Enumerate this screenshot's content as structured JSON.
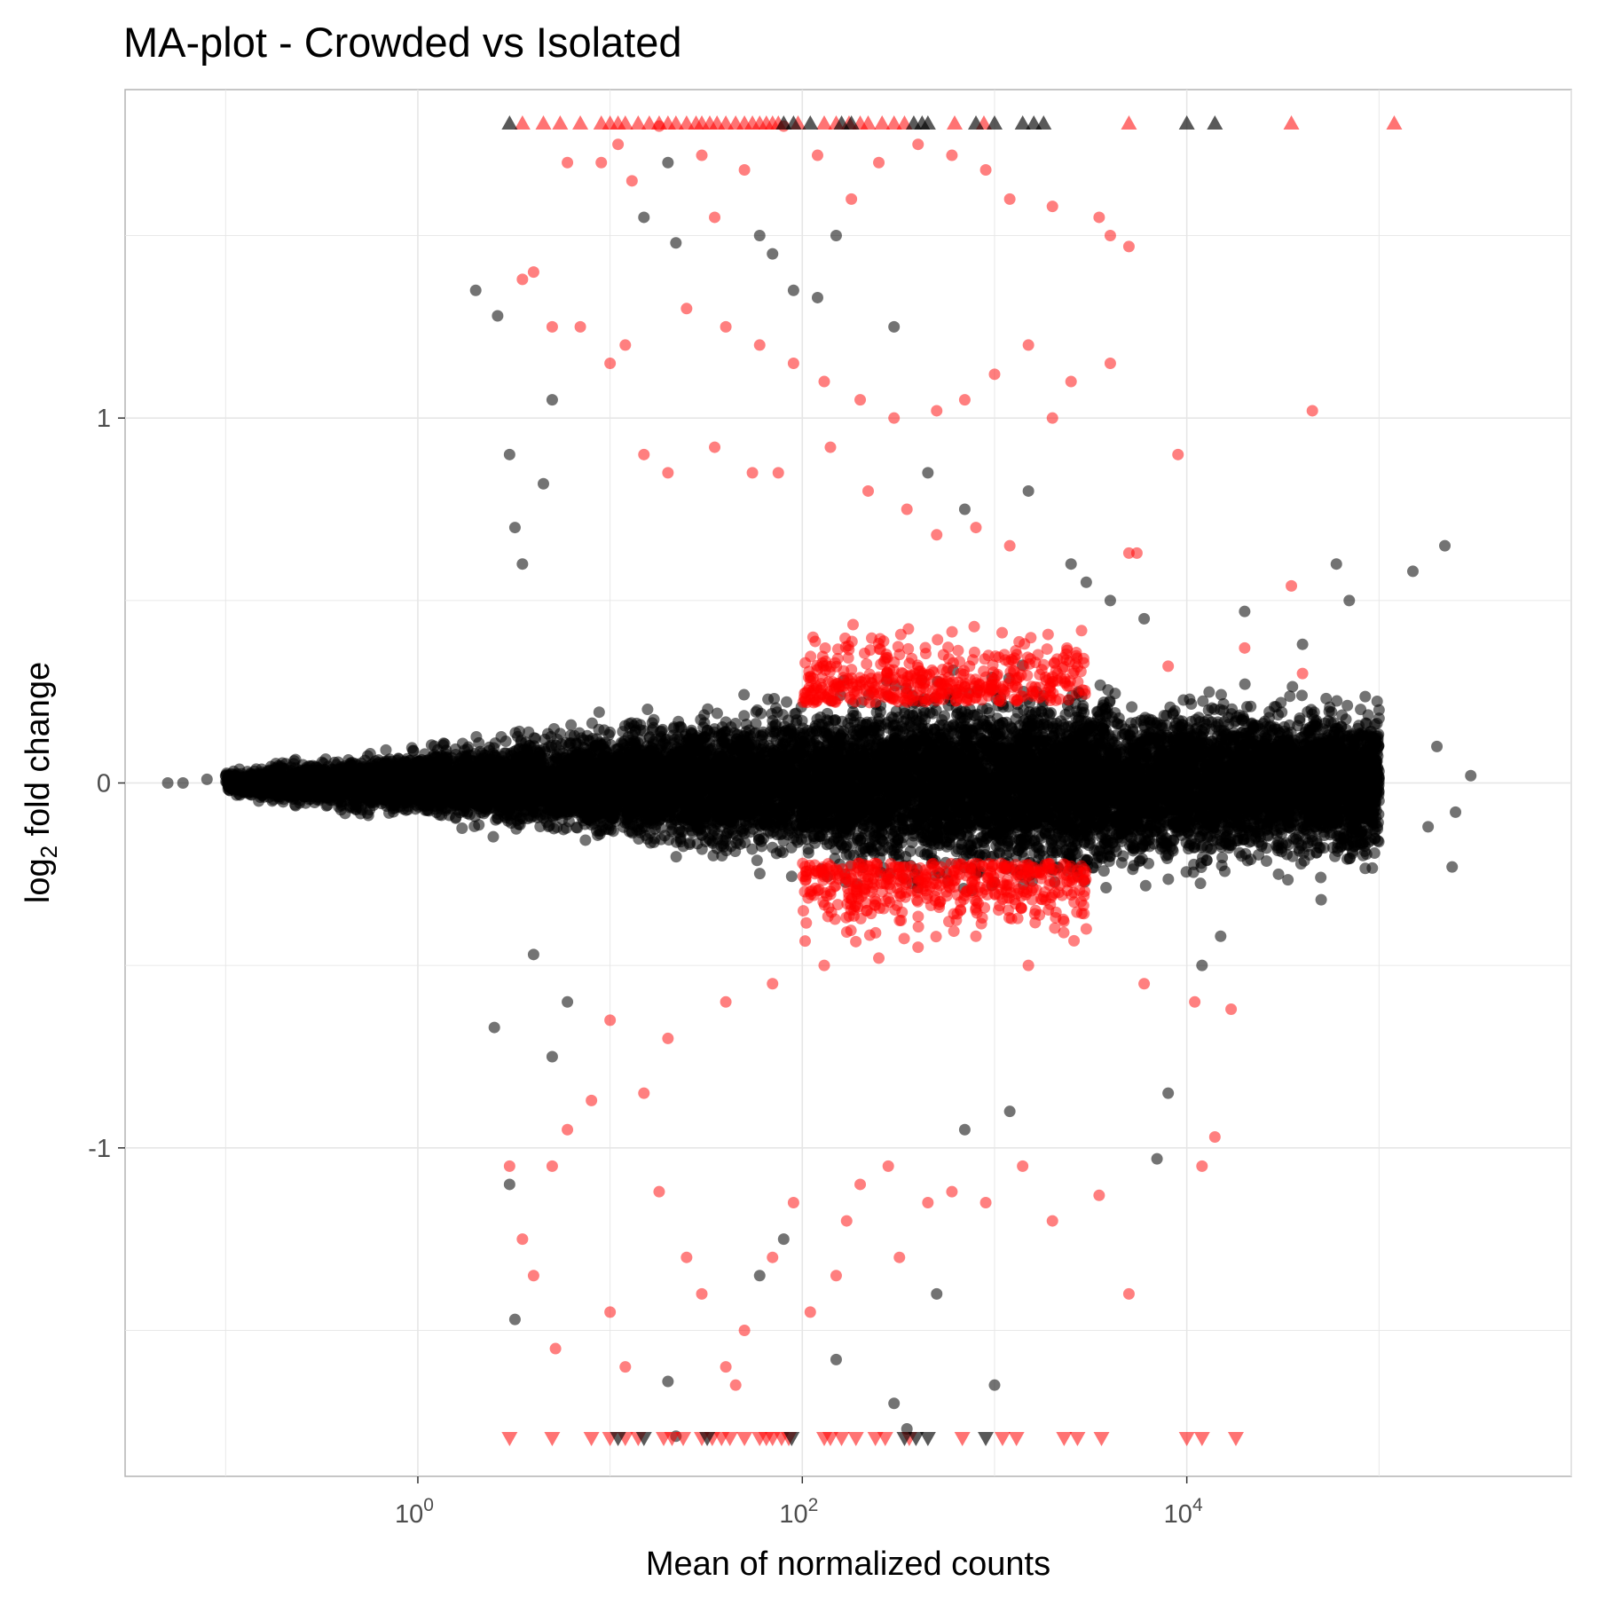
{
  "chart_data": {
    "type": "scatter",
    "title": "MA-plot - Crowded vs Isolated",
    "xlabel": "Mean of normalized counts",
    "ylabel": "log2 fold change",
    "ylabel_parts": {
      "base": "log",
      "sub": "2",
      "rest": " fold change"
    },
    "x_scale": "log10",
    "xlim": [
      0.03,
      1000000
    ],
    "ylim": [
      -1.9,
      1.9
    ],
    "x_ticks": [
      {
        "value": 1,
        "base": "10",
        "exp": "0"
      },
      {
        "value": 100,
        "base": "10",
        "exp": "2"
      },
      {
        "value": 10000,
        "base": "10",
        "exp": "4"
      }
    ],
    "y_ticks": [
      {
        "value": 1,
        "label": "1"
      },
      {
        "value": 0,
        "label": "0"
      },
      {
        "value": -1,
        "label": "-1"
      }
    ],
    "grid": true,
    "legend": "none",
    "series": [
      {
        "color": "#000000",
        "marker": "circle",
        "opacity": 0.55,
        "cloud": {
          "x_range": [
            0.1,
            100000
          ],
          "n_points": 14000
        },
        "points": [
          [
            2,
            1.35
          ],
          [
            2.6,
            1.28
          ],
          [
            3,
            0.9
          ],
          [
            3.2,
            0.7
          ],
          [
            4.5,
            0.82
          ],
          [
            5,
            1.05
          ],
          [
            3.5,
            0.6
          ],
          [
            20,
            1.7
          ],
          [
            15,
            1.55
          ],
          [
            22,
            1.48
          ],
          [
            60,
            1.5
          ],
          [
            70,
            1.45
          ],
          [
            150,
            1.5
          ],
          [
            90,
            1.35
          ],
          [
            120,
            1.33
          ],
          [
            300,
            1.25
          ],
          [
            450,
            0.85
          ],
          [
            700,
            0.75
          ],
          [
            1500,
            0.8
          ],
          [
            3000,
            0.55
          ],
          [
            4000,
            0.5
          ],
          [
            2500,
            0.6
          ],
          [
            6000,
            0.45
          ],
          [
            20000,
            0.47
          ],
          [
            60000,
            0.6
          ],
          [
            70000,
            0.5
          ],
          [
            150000,
            0.58
          ],
          [
            220000,
            0.65
          ],
          [
            100000,
            0.2
          ],
          [
            200000,
            0.1
          ],
          [
            40000,
            0.38
          ],
          [
            250000,
            -0.08
          ],
          [
            300000,
            0.02
          ],
          [
            180000,
            -0.12
          ],
          [
            240000,
            -0.23
          ],
          [
            50000,
            -0.32
          ],
          [
            30000,
            -0.25
          ],
          [
            15000,
            -0.42
          ],
          [
            12000,
            -0.5
          ],
          [
            8000,
            -0.85
          ],
          [
            7000,
            -1.03
          ],
          [
            2.5,
            -0.67
          ],
          [
            3,
            -1.1
          ],
          [
            3.2,
            -1.47
          ],
          [
            5,
            -0.75
          ],
          [
            6,
            -0.6
          ],
          [
            4,
            -0.47
          ],
          [
            20,
            -1.64
          ],
          [
            60,
            -1.35
          ],
          [
            80,
            -1.25
          ],
          [
            150,
            -1.58
          ],
          [
            300,
            -1.7
          ],
          [
            1000,
            -1.65
          ],
          [
            500,
            -1.4
          ],
          [
            700,
            -0.95
          ],
          [
            1200,
            -0.9
          ],
          [
            22,
            -1.79
          ],
          [
            350,
            -1.77
          ],
          [
            0.05,
            0
          ],
          [
            0.06,
            0
          ],
          [
            0.08,
            0.01
          ],
          [
            0.1,
            0.02
          ],
          [
            0.12,
            -0.01
          ],
          [
            0.15,
            0
          ]
        ]
      },
      {
        "color": "#ff0000",
        "marker": "circle",
        "opacity": 0.5,
        "cloud": {
          "x_range": [
            100,
            3000
          ],
          "n_points": 900
        },
        "points": [
          [
            6,
            1.7
          ],
          [
            9,
            1.7
          ],
          [
            11,
            1.75
          ],
          [
            13,
            1.65
          ],
          [
            18,
            1.8
          ],
          [
            30,
            1.72
          ],
          [
            35,
            1.55
          ],
          [
            50,
            1.68
          ],
          [
            80,
            1.8
          ],
          [
            120,
            1.72
          ],
          [
            180,
            1.6
          ],
          [
            250,
            1.7
          ],
          [
            400,
            1.75
          ],
          [
            600,
            1.72
          ],
          [
            900,
            1.68
          ],
          [
            1200,
            1.6
          ],
          [
            2000,
            1.58
          ],
          [
            3500,
            1.55
          ],
          [
            4000,
            1.5
          ],
          [
            5000,
            1.47
          ],
          [
            3.5,
            1.38
          ],
          [
            4,
            1.4
          ],
          [
            5,
            1.25
          ],
          [
            7,
            1.25
          ],
          [
            10,
            1.15
          ],
          [
            12,
            1.2
          ],
          [
            25,
            1.3
          ],
          [
            40,
            1.25
          ],
          [
            60,
            1.2
          ],
          [
            90,
            1.15
          ],
          [
            130,
            1.1
          ],
          [
            200,
            1.05
          ],
          [
            300,
            1.0
          ],
          [
            500,
            1.02
          ],
          [
            700,
            1.05
          ],
          [
            1000,
            1.12
          ],
          [
            1500,
            1.2
          ],
          [
            2000,
            1.0
          ],
          [
            2500,
            1.1
          ],
          [
            4000,
            1.15
          ],
          [
            9000,
            0.9
          ],
          [
            45000,
            1.02
          ],
          [
            5000,
            0.63
          ],
          [
            5500,
            0.63
          ],
          [
            35000,
            0.54
          ],
          [
            40000,
            0.3
          ],
          [
            20000,
            0.37
          ],
          [
            8000,
            0.32
          ],
          [
            15,
            0.9
          ],
          [
            20,
            0.85
          ],
          [
            35,
            0.92
          ],
          [
            55,
            0.85
          ],
          [
            75,
            0.85
          ],
          [
            140,
            0.92
          ],
          [
            220,
            0.8
          ],
          [
            350,
            0.75
          ],
          [
            500,
            0.68
          ],
          [
            800,
            0.7
          ],
          [
            1200,
            0.65
          ],
          [
            3,
            -1.05
          ],
          [
            3.5,
            -1.25
          ],
          [
            4,
            -1.35
          ],
          [
            5,
            -1.05
          ],
          [
            5.2,
            -1.55
          ],
          [
            6,
            -0.95
          ],
          [
            8,
            -0.87
          ],
          [
            10,
            -1.45
          ],
          [
            12,
            -1.6
          ],
          [
            15,
            -0.85
          ],
          [
            18,
            -1.12
          ],
          [
            25,
            -1.3
          ],
          [
            30,
            -1.4
          ],
          [
            40,
            -1.6
          ],
          [
            45,
            -1.65
          ],
          [
            50,
            -1.5
          ],
          [
            70,
            -1.3
          ],
          [
            90,
            -1.15
          ],
          [
            110,
            -1.45
          ],
          [
            150,
            -1.35
          ],
          [
            170,
            -1.2
          ],
          [
            200,
            -1.1
          ],
          [
            280,
            -1.05
          ],
          [
            320,
            -1.3
          ],
          [
            450,
            -1.15
          ],
          [
            600,
            -1.12
          ],
          [
            900,
            -1.15
          ],
          [
            1400,
            -1.05
          ],
          [
            2000,
            -1.2
          ],
          [
            3500,
            -1.13
          ],
          [
            5000,
            -1.4
          ],
          [
            12000,
            -1.05
          ],
          [
            14000,
            -0.97
          ],
          [
            10,
            -0.65
          ],
          [
            20,
            -0.7
          ],
          [
            40,
            -0.6
          ],
          [
            70,
            -0.55
          ],
          [
            130,
            -0.5
          ],
          [
            250,
            -0.48
          ],
          [
            400,
            -0.45
          ],
          [
            800,
            -0.42
          ],
          [
            1500,
            -0.5
          ],
          [
            3000,
            -0.4
          ],
          [
            6000,
            -0.55
          ],
          [
            11000,
            -0.6
          ],
          [
            17000,
            -0.62
          ]
        ]
      },
      {
        "color": "#ff0000",
        "marker": "triangle-up",
        "opacity": 0.55,
        "at": "top-edge",
        "x": [
          3.5,
          4.5,
          5.5,
          7,
          9,
          10,
          11,
          12,
          14,
          16,
          18,
          20,
          22,
          25,
          28,
          30,
          33,
          36,
          40,
          45,
          50,
          55,
          60,
          65,
          70,
          75,
          95,
          130,
          150,
          175,
          200,
          220,
          260,
          300,
          340,
          620,
          880,
          5000,
          35000,
          120000
        ]
      },
      {
        "color": "#000000",
        "marker": "triangle-up",
        "opacity": 0.65,
        "at": "top-edge",
        "x": [
          3,
          80,
          90,
          110,
          160,
          180,
          380,
          420,
          450,
          800,
          1000,
          1400,
          1600,
          1800,
          10000,
          14000
        ]
      },
      {
        "color": "#ff0000",
        "marker": "triangle-down",
        "opacity": 0.55,
        "at": "bottom-edge",
        "x": [
          3,
          5,
          8,
          10,
          12,
          14,
          19,
          21,
          24,
          30,
          34,
          38,
          42,
          50,
          60,
          65,
          70,
          78,
          85,
          130,
          140,
          160,
          190,
          240,
          270,
          360,
          680,
          1100,
          1300,
          2300,
          2700,
          3600,
          10000,
          12000,
          18000
        ]
      },
      {
        "color": "#000000",
        "marker": "triangle-down",
        "opacity": 0.65,
        "at": "bottom-edge",
        "x": [
          11,
          15,
          32,
          88,
          340,
          390,
          450,
          900
        ]
      }
    ]
  }
}
